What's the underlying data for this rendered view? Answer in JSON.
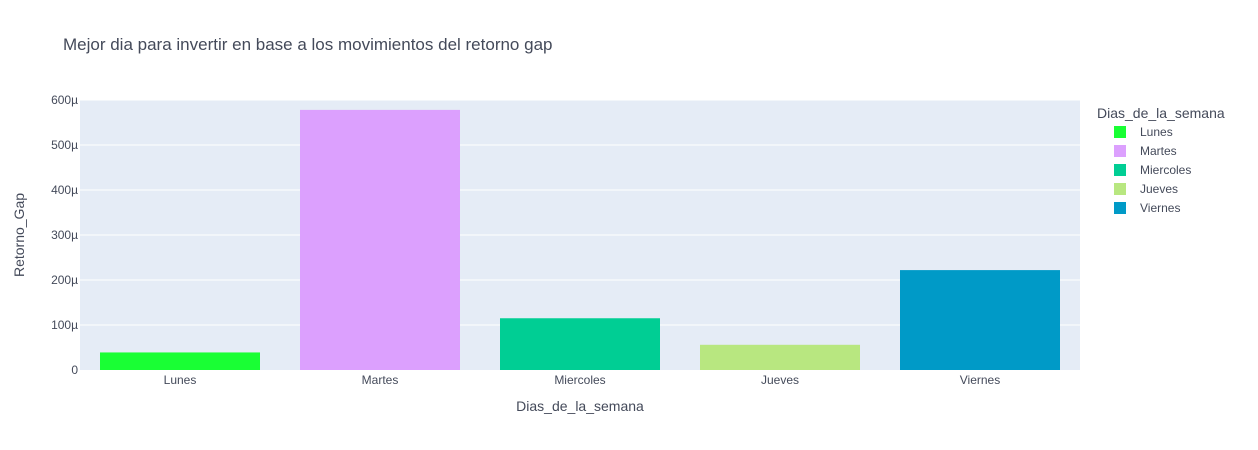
{
  "chart_data": {
    "type": "bar",
    "title": "Mejor dia para invertir en base a los movimientos del retorno gap",
    "xlabel": "Dias_de_la_semana",
    "ylabel": "Retorno_Gap",
    "categories": [
      "Lunes",
      "Martes",
      "Miercoles",
      "Jueves",
      "Viernes"
    ],
    "values": [
      3.9e-05,
      0.000578,
      0.000115,
      5.6e-05,
      0.000222
    ],
    "colors": [
      "#19ff34",
      "#dca0fe",
      "#00ce94",
      "#b8e780",
      "#009ac7"
    ],
    "ylim": [
      0,
      0.0006
    ],
    "yticks": [
      0,
      0.0001,
      0.0002,
      0.0003,
      0.0004,
      0.0005,
      0.0006
    ],
    "ytick_labels": [
      "0",
      "100µ",
      "200µ",
      "300µ",
      "400µ",
      "500µ",
      "600µ"
    ],
    "legend": {
      "title": "Dias_de_la_semana",
      "placement": "right",
      "entries": [
        "Lunes",
        "Martes",
        "Miercoles",
        "Jueves",
        "Viernes"
      ]
    },
    "grid": true,
    "background": "#e5ecf6"
  }
}
